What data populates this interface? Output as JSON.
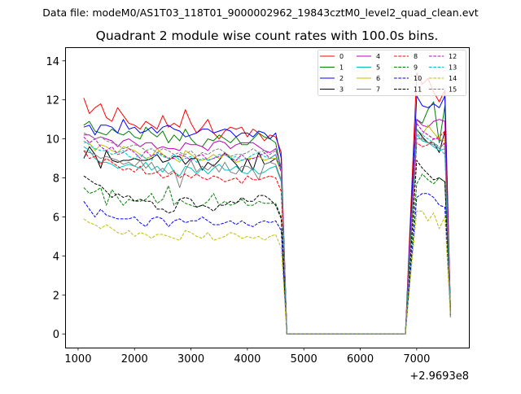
{
  "suptitle": "Data file: modeM0/AS1T03_118T01_9000002962_19843cztM0_level2_quad_clean.evt",
  "chart_data": {
    "type": "line",
    "title": "Quadrant 2 module wise count rates with 100.0s bins.",
    "xlabel": "",
    "ylabel": "",
    "x_offset_label": "+2.9693e8",
    "xlim": [
      770,
      7925
    ],
    "ylim": [
      -0.7,
      14.7
    ],
    "xticks": [
      1000,
      2000,
      3000,
      4000,
      5000,
      6000,
      7000
    ],
    "yticks": [
      0,
      2,
      4,
      6,
      8,
      10,
      12,
      14
    ],
    "grid": false,
    "legend_placement": "top-right",
    "legend_columns": 4,
    "x": [
      1100,
      1200,
      1300,
      1400,
      1500,
      1600,
      1700,
      1800,
      1900,
      2000,
      2100,
      2200,
      2300,
      2400,
      2500,
      2600,
      2700,
      2800,
      2900,
      3000,
      3100,
      3200,
      3300,
      3400,
      3500,
      3600,
      3700,
      3800,
      3900,
      4000,
      4100,
      4200,
      4300,
      4400,
      4500,
      4600,
      4700,
      4800,
      4900,
      5000,
      5100,
      5200,
      5300,
      5400,
      5500,
      5600,
      5700,
      5800,
      5900,
      6000,
      6100,
      6200,
      6300,
      6400,
      6500,
      6600,
      6700,
      6800,
      6900,
      7000,
      7100,
      7200,
      7300,
      7400,
      7500,
      7600
    ],
    "series": [
      {
        "name": "0",
        "color": "#ff0000",
        "dash": false,
        "values": [
          12.1,
          11.3,
          11.6,
          11.8,
          11.1,
          10.9,
          11.6,
          11.2,
          10.8,
          10.7,
          10.5,
          10.9,
          10.7,
          10.5,
          11.2,
          10.6,
          10.8,
          10.6,
          11.5,
          10.8,
          10.3,
          10.6,
          11.0,
          10.3,
          10.0,
          10.4,
          10.6,
          10.5,
          10.6,
          10.1,
          10.5,
          10.3,
          9.9,
          10.2,
          10.1,
          9.3,
          0,
          0,
          0,
          0,
          0,
          0,
          0,
          0,
          0,
          0,
          0,
          0,
          0,
          0,
          0,
          0,
          0,
          0,
          0,
          0,
          0,
          0,
          6.7,
          13.4,
          12.8,
          13.1,
          12.4,
          11.9,
          12.5,
          1.0
        ]
      },
      {
        "name": "1",
        "color": "#008000",
        "dash": false,
        "values": [
          10.7,
          10.9,
          10.4,
          10.3,
          10.2,
          10.5,
          10.3,
          10.2,
          10.4,
          10.1,
          10.0,
          10.6,
          10.3,
          10.1,
          10.4,
          9.8,
          10.2,
          9.9,
          10.5,
          10.0,
          9.7,
          9.6,
          10.0,
          9.9,
          10.2,
          10.0,
          9.8,
          10.1,
          9.7,
          9.7,
          10.0,
          10.3,
          10.1,
          10.0,
          9.8,
          8.4,
          0,
          0,
          0,
          0,
          0,
          0,
          0,
          0,
          0,
          0,
          0,
          0,
          0,
          0,
          0,
          0,
          0,
          0,
          0,
          0,
          0,
          0,
          5.5,
          11.0,
          10.8,
          11.5,
          11.9,
          9.8,
          11.7,
          1.0
        ]
      },
      {
        "name": "2",
        "color": "#0000ff",
        "dash": false,
        "values": [
          10.6,
          10.7,
          10.2,
          10.7,
          10.7,
          10.6,
          10.3,
          11.0,
          10.5,
          10.6,
          10.3,
          10.4,
          10.6,
          10.3,
          10.6,
          10.7,
          10.5,
          10.4,
          10.1,
          10.2,
          10.3,
          10.5,
          10.5,
          10.3,
          10.4,
          10.5,
          10.4,
          10.1,
          10.3,
          10.3,
          10.1,
          10.4,
          10.3,
          10.0,
          10.3,
          9.0,
          0,
          0,
          0,
          0,
          0,
          0,
          0,
          0,
          0,
          0,
          0,
          0,
          0,
          0,
          0,
          0,
          0,
          0,
          0,
          0,
          0,
          0,
          6.1,
          12.2,
          11.7,
          11.6,
          11.8,
          11.6,
          12.2,
          1.0
        ]
      },
      {
        "name": "3",
        "color": "#000000",
        "dash": false,
        "values": [
          9.0,
          9.6,
          9.2,
          8.5,
          9.4,
          8.9,
          8.8,
          8.9,
          8.9,
          9.0,
          8.9,
          8.9,
          9.0,
          9.2,
          8.8,
          8.9,
          9.1,
          9.1,
          8.7,
          9.0,
          9.0,
          8.4,
          8.8,
          8.6,
          8.9,
          9.3,
          9.0,
          8.7,
          8.3,
          9.0,
          8.4,
          9.3,
          8.7,
          8.8,
          9.0,
          8.5,
          0,
          0,
          0,
          0,
          0,
          0,
          0,
          0,
          0,
          0,
          0,
          0,
          0,
          0,
          0,
          0,
          0,
          0,
          0,
          0,
          0,
          0,
          5.3,
          10.5,
          10.1,
          9.8,
          9.8,
          9.3,
          10.4,
          0.9
        ]
      },
      {
        "name": "4",
        "color": "#bf00bf",
        "dash": false,
        "values": [
          10.2,
          10.2,
          10.0,
          10.1,
          10.0,
          9.9,
          9.6,
          9.9,
          10.0,
          9.8,
          9.6,
          9.8,
          9.8,
          9.5,
          9.6,
          9.5,
          9.5,
          9.4,
          9.8,
          9.7,
          9.7,
          9.6,
          9.4,
          9.8,
          9.9,
          9.8,
          9.5,
          9.7,
          9.8,
          9.8,
          9.8,
          9.6,
          9.4,
          9.3,
          9.5,
          8.5,
          0,
          0,
          0,
          0,
          0,
          0,
          0,
          0,
          0,
          0,
          0,
          0,
          0,
          0,
          0,
          0,
          0,
          0,
          0,
          0,
          0,
          0,
          5.5,
          11.0,
          10.7,
          10.6,
          10.9,
          11.0,
          10.9,
          1.0
        ]
      },
      {
        "name": "5",
        "color": "#00bfbf",
        "dash": false,
        "values": [
          9.6,
          9.4,
          9.0,
          8.8,
          8.8,
          8.7,
          8.5,
          8.6,
          8.7,
          8.6,
          8.5,
          8.8,
          8.4,
          8.6,
          8.3,
          8.8,
          8.3,
          8.1,
          8.6,
          8.5,
          8.2,
          8.5,
          8.2,
          8.5,
          8.7,
          8.4,
          8.4,
          8.6,
          8.3,
          8.2,
          8.5,
          8.2,
          8.3,
          8.5,
          8.6,
          7.8,
          0,
          0,
          0,
          0,
          0,
          0,
          0,
          0,
          0,
          0,
          0,
          0,
          0,
          0,
          0,
          0,
          0,
          0,
          0,
          0,
          0,
          0,
          5.1,
          10.2,
          9.9,
          9.8,
          9.6,
          9.4,
          9.5,
          1.0
        ]
      },
      {
        "name": "6",
        "color": "#bfbf00",
        "dash": false,
        "values": [
          9.8,
          9.8,
          9.4,
          9.7,
          9.6,
          9.4,
          9.3,
          9.6,
          9.5,
          9.4,
          9.2,
          9.0,
          9.1,
          9.5,
          9.2,
          9.0,
          9.0,
          8.8,
          9.4,
          9.2,
          9.0,
          8.9,
          9.0,
          9.2,
          9.0,
          9.2,
          9.1,
          8.8,
          8.9,
          9.0,
          9.0,
          9.1,
          8.9,
          9.0,
          9.0,
          8.3,
          0,
          0,
          0,
          0,
          0,
          0,
          0,
          0,
          0,
          0,
          0,
          0,
          0,
          0,
          0,
          0,
          0,
          0,
          0,
          0,
          0,
          0,
          5.3,
          10.5,
          10.2,
          10.7,
          10.3,
          10.0,
          9.9,
          1.0
        ]
      },
      {
        "name": "7",
        "color": "#808080",
        "dash": false,
        "values": [
          9.4,
          9.3,
          9.2,
          9.0,
          9.1,
          9.0,
          8.9,
          8.7,
          8.8,
          8.6,
          8.9,
          8.5,
          8.8,
          8.3,
          8.5,
          8.2,
          8.4,
          7.5,
          8.4,
          8.9,
          8.3,
          8.6,
          8.4,
          8.7,
          8.3,
          8.8,
          8.3,
          8.2,
          8.6,
          8.6,
          8.4,
          7.9,
          8.7,
          8.8,
          8.7,
          7.9,
          0,
          0,
          0,
          0,
          0,
          0,
          0,
          0,
          0,
          0,
          0,
          0,
          0,
          0,
          0,
          0,
          0,
          0,
          0,
          0,
          0,
          0,
          5.0,
          10.0,
          10.0,
          9.8,
          9.7,
          9.5,
          9.8,
          1.0
        ]
      },
      {
        "name": "8",
        "color": "#ff0000",
        "dash": true,
        "values": [
          9.4,
          9.0,
          9.1,
          8.7,
          9.0,
          8.8,
          8.6,
          8.4,
          8.5,
          8.3,
          8.6,
          8.2,
          8.2,
          8.3,
          8.0,
          8.1,
          8.3,
          8.0,
          8.2,
          8.0,
          8.2,
          8.0,
          7.9,
          8.1,
          8.0,
          7.8,
          7.9,
          8.0,
          7.7,
          8.1,
          7.9,
          7.9,
          8.0,
          8.1,
          8.0,
          7.3,
          0,
          0,
          0,
          0,
          0,
          0,
          0,
          0,
          0,
          0,
          0,
          0,
          0,
          0,
          0,
          0,
          0,
          0,
          0,
          0,
          0,
          0,
          4.9,
          9.8,
          9.6,
          9.7,
          10.0,
          10.1,
          10.4,
          1.0
        ]
      },
      {
        "name": "9",
        "color": "#008000",
        "dash": true,
        "values": [
          7.5,
          7.2,
          7.3,
          7.5,
          6.6,
          7.4,
          7.0,
          6.6,
          6.9,
          6.8,
          6.8,
          6.9,
          7.2,
          6.7,
          6.9,
          7.6,
          6.6,
          6.9,
          6.7,
          6.6,
          6.5,
          6.6,
          6.8,
          7.2,
          6.6,
          6.8,
          6.6,
          6.7,
          6.9,
          6.6,
          6.6,
          6.8,
          6.7,
          6.7,
          6.7,
          6.0,
          0,
          0,
          0,
          0,
          0,
          0,
          0,
          0,
          0,
          0,
          0,
          0,
          0,
          0,
          0,
          0,
          0,
          0,
          0,
          0,
          0,
          0,
          3.9,
          7.7,
          8.2,
          7.9,
          7.7,
          8.0,
          7.8,
          0.9
        ]
      },
      {
        "name": "10",
        "color": "#0000ff",
        "dash": true,
        "values": [
          6.8,
          6.4,
          6.0,
          6.4,
          6.1,
          6.0,
          5.9,
          5.9,
          5.9,
          6.0,
          5.7,
          5.5,
          5.9,
          6.0,
          5.9,
          5.5,
          5.8,
          5.9,
          5.7,
          5.8,
          5.8,
          6.0,
          5.8,
          5.6,
          5.6,
          5.7,
          5.8,
          5.6,
          5.8,
          5.6,
          5.5,
          5.7,
          5.8,
          5.7,
          5.8,
          5.3,
          0,
          0,
          0,
          0,
          0,
          0,
          0,
          0,
          0,
          0,
          0,
          0,
          0,
          0,
          0,
          0,
          0,
          0,
          0,
          0,
          0,
          0,
          3.5,
          7.0,
          7.2,
          7.2,
          7.0,
          6.6,
          6.5,
          0.9
        ]
      },
      {
        "name": "11",
        "color": "#000000",
        "dash": true,
        "values": [
          8.1,
          7.9,
          7.7,
          7.6,
          7.3,
          7.0,
          7.2,
          7.0,
          7.1,
          6.8,
          6.9,
          6.8,
          6.8,
          6.4,
          6.4,
          6.2,
          6.3,
          6.9,
          7.0,
          6.9,
          6.5,
          6.6,
          6.5,
          6.3,
          6.6,
          6.6,
          6.8,
          6.7,
          7.0,
          6.8,
          6.8,
          7.1,
          7.1,
          6.9,
          6.6,
          5.9,
          0,
          0,
          0,
          0,
          0,
          0,
          0,
          0,
          0,
          0,
          0,
          0,
          0,
          0,
          0,
          0,
          0,
          0,
          0,
          0,
          0,
          0,
          4.4,
          8.9,
          8.5,
          8.2,
          7.9,
          8.0,
          7.8,
          0.8
        ]
      },
      {
        "name": "12",
        "color": "#bf00bf",
        "dash": true,
        "values": [
          10.1,
          9.8,
          10.0,
          9.6,
          9.4,
          9.6,
          9.2,
          9.3,
          9.5,
          9.3,
          9.0,
          9.4,
          9.1,
          9.3,
          9.2,
          9.0,
          9.0,
          9.2,
          9.1,
          8.9,
          9.1,
          9.2,
          8.9,
          9.0,
          9.1,
          9.2,
          9.0,
          8.9,
          9.2,
          8.9,
          9.0,
          9.1,
          9.3,
          9.0,
          9.2,
          8.3,
          0,
          0,
          0,
          0,
          0,
          0,
          0,
          0,
          0,
          0,
          0,
          0,
          0,
          0,
          0,
          0,
          0,
          0,
          0,
          0,
          0,
          0,
          5.4,
          10.8,
          10.4,
          10.2,
          10.0,
          10.0,
          9.7,
          1.0
        ]
      },
      {
        "name": "13",
        "color": "#00bfbf",
        "dash": true,
        "values": [
          9.9,
          9.7,
          9.5,
          9.4,
          9.4,
          9.2,
          9.3,
          9.4,
          9.1,
          9.0,
          9.2,
          9.0,
          8.9,
          9.3,
          9.1,
          9.0,
          9.2,
          8.9,
          9.0,
          9.1,
          8.8,
          9.0,
          8.9,
          9.0,
          9.2,
          9.2,
          9.0,
          9.1,
          8.9,
          9.0,
          9.2,
          9.3,
          9.1,
          9.0,
          9.2,
          8.4,
          0,
          0,
          0,
          0,
          0,
          0,
          0,
          0,
          0,
          0,
          0,
          0,
          0,
          0,
          0,
          0,
          0,
          0,
          0,
          0,
          0,
          0,
          5.2,
          10.5,
          10.2,
          10.0,
          9.8,
          9.5,
          9.2,
          1.0
        ]
      },
      {
        "name": "14",
        "color": "#bfbf00",
        "dash": true,
        "values": [
          5.9,
          5.7,
          5.6,
          5.4,
          5.6,
          5.4,
          5.2,
          5.1,
          5.3,
          5.0,
          5.2,
          5.1,
          4.9,
          5.1,
          5.1,
          5.0,
          4.9,
          4.8,
          5.3,
          5.2,
          5.0,
          4.9,
          5.2,
          4.8,
          4.9,
          5.0,
          5.2,
          5.1,
          4.9,
          5.0,
          4.9,
          5.0,
          4.8,
          5.0,
          5.1,
          4.4,
          0,
          0,
          0,
          0,
          0,
          0,
          0,
          0,
          0,
          0,
          0,
          0,
          0,
          0,
          0,
          0,
          0,
          0,
          0,
          0,
          0,
          0,
          3.2,
          6.3,
          6.3,
          5.8,
          6.2,
          5.4,
          6.0,
          0.8
        ]
      },
      {
        "name": "15",
        "color": "#808080",
        "dash": true,
        "values": [
          10.3,
          10.2,
          10.0,
          10.1,
          9.9,
          9.8,
          9.7,
          9.5,
          9.6,
          9.7,
          9.6,
          9.4,
          9.5,
          9.3,
          9.5,
          9.4,
          9.2,
          9.3,
          9.2,
          9.4,
          9.1,
          9.3,
          9.2,
          9.4,
          9.5,
          9.3,
          9.1,
          9.2,
          9.2,
          9.3,
          9.5,
          9.3,
          9.4,
          9.2,
          9.4,
          8.6,
          0,
          0,
          0,
          0,
          0,
          0,
          0,
          0,
          0,
          0,
          0,
          0,
          0,
          0,
          0,
          0,
          0,
          0,
          0,
          0,
          0,
          0,
          5.1,
          10.3,
          10.0,
          9.8,
          9.8,
          9.6,
          9.6,
          1.0
        ]
      }
    ]
  }
}
